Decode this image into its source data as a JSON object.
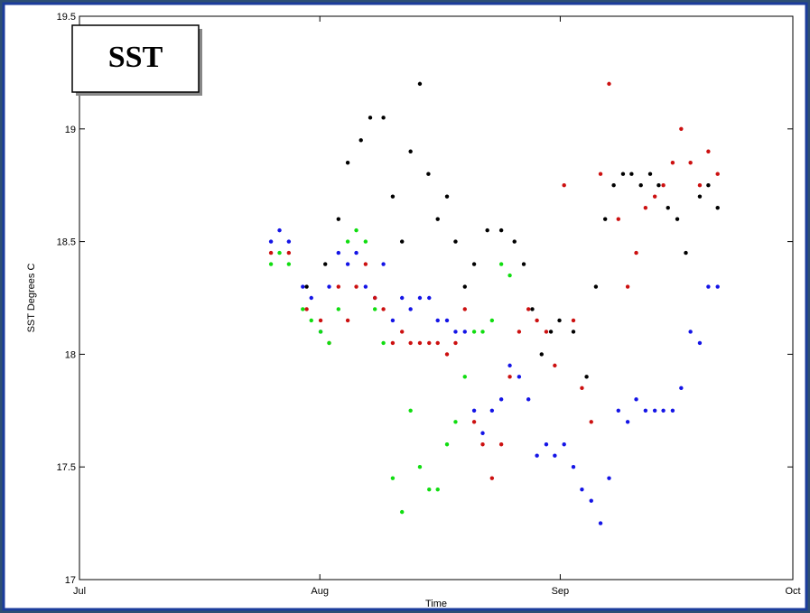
{
  "chart_data": {
    "type": "scatter",
    "title": "SST",
    "x_label": "Time",
    "y_label": "SST Degrees C",
    "xlim": [
      0,
      92
    ],
    "xticks": [
      {
        "value": 0,
        "label": "Jul"
      },
      {
        "value": 31,
        "label": "Aug"
      },
      {
        "value": 62,
        "label": "Sep"
      },
      {
        "value": 92,
        "label": "Oct"
      }
    ],
    "ylim": [
      17,
      19.5
    ],
    "yticks": [
      17,
      17.5,
      18,
      18.5,
      19,
      19.5
    ],
    "grid": false,
    "series": [
      {
        "color": "#000000",
        "x": [
          29.3,
          31.7,
          33.4,
          34.6,
          36.3,
          37.5,
          39.2,
          40.4,
          41.6,
          42.7,
          43.9,
          45.0,
          46.2,
          47.4,
          48.5,
          49.7,
          50.9,
          52.6,
          54.4,
          56.1,
          57.3,
          58.4,
          59.6,
          60.8,
          61.9,
          63.7,
          65.4,
          66.6,
          67.8,
          68.9,
          70.1,
          71.2,
          72.4,
          73.6,
          74.7,
          75.9,
          77.1,
          78.2,
          80.0,
          81.1,
          82.3
        ],
        "values": [
          18.3,
          18.4,
          18.6,
          18.85,
          18.95,
          19.05,
          19.05,
          18.7,
          18.5,
          18.9,
          19.2,
          18.8,
          18.6,
          18.7,
          18.5,
          18.3,
          18.4,
          18.55,
          18.55,
          18.5,
          18.4,
          18.2,
          18.0,
          18.1,
          18.15,
          18.1,
          17.9,
          18.3,
          18.6,
          18.75,
          18.8,
          18.8,
          18.75,
          18.8,
          18.75,
          18.65,
          18.6,
          18.45,
          18.7,
          18.75,
          18.65
        ]
      },
      {
        "color": "#1414e6",
        "x": [
          24.7,
          25.8,
          27.0,
          28.8,
          29.9,
          31.1,
          32.2,
          33.4,
          34.6,
          35.7,
          36.9,
          38.1,
          39.2,
          40.4,
          41.6,
          42.7,
          43.9,
          45.1,
          46.2,
          47.4,
          48.5,
          49.7,
          50.9,
          52.0,
          53.2,
          54.4,
          55.5,
          56.7,
          57.9,
          59.0,
          60.2,
          61.3,
          62.5,
          63.7,
          64.8,
          66.0,
          67.2,
          68.3,
          69.5,
          70.7,
          71.8,
          73.0,
          74.2,
          75.3,
          76.5,
          77.6,
          78.8,
          80.0,
          81.1,
          82.3
        ],
        "values": [
          18.5,
          18.55,
          18.5,
          18.3,
          18.25,
          18.1,
          18.3,
          18.45,
          18.4,
          18.45,
          18.3,
          18.25,
          18.4,
          18.15,
          18.25,
          18.2,
          18.25,
          18.25,
          18.15,
          18.15,
          18.1,
          18.1,
          17.75,
          17.65,
          17.75,
          17.8,
          17.95,
          17.9,
          17.8,
          17.55,
          17.6,
          17.55,
          17.6,
          17.5,
          17.4,
          17.35,
          17.25,
          17.45,
          17.75,
          17.7,
          17.8,
          17.75,
          17.75,
          17.75,
          17.75,
          17.85,
          18.1,
          18.05,
          18.3,
          18.3
        ]
      },
      {
        "color": "#cc1010",
        "x": [
          24.7,
          27.0,
          29.3,
          31.1,
          32.2,
          33.4,
          34.6,
          35.7,
          36.9,
          38.1,
          39.2,
          40.4,
          41.6,
          42.7,
          43.9,
          45.1,
          46.2,
          47.4,
          48.5,
          49.7,
          50.9,
          52.0,
          53.2,
          54.4,
          55.5,
          56.7,
          57.9,
          59.0,
          60.2,
          61.3,
          62.5,
          63.7,
          64.8,
          66.0,
          67.2,
          68.3,
          69.5,
          70.7,
          71.8,
          73.0,
          74.2,
          75.3,
          76.5,
          77.6,
          78.8,
          80.0,
          81.1,
          82.3
        ],
        "values": [
          18.45,
          18.45,
          18.2,
          18.15,
          18.05,
          18.3,
          18.15,
          18.3,
          18.4,
          18.25,
          18.2,
          18.05,
          18.1,
          18.05,
          18.05,
          18.05,
          18.05,
          18.0,
          18.05,
          18.2,
          17.7,
          17.6,
          17.45,
          17.6,
          17.9,
          18.1,
          18.2,
          18.15,
          18.1,
          17.95,
          18.75,
          18.15,
          17.85,
          17.7,
          18.8,
          19.2,
          18.6,
          18.3,
          18.45,
          18.65,
          18.7,
          18.75,
          18.85,
          19.0,
          18.85,
          18.75,
          18.9,
          18.8
        ]
      },
      {
        "color": "#10dd10",
        "x": [
          24.7,
          25.8,
          27.0,
          28.8,
          29.9,
          31.1,
          32.2,
          33.4,
          34.6,
          35.7,
          36.9,
          38.1,
          39.2,
          40.4,
          41.6,
          42.7,
          43.9,
          45.1,
          46.2,
          47.4,
          48.5,
          49.7,
          50.9,
          52.0,
          53.2,
          54.4,
          55.5
        ],
        "values": [
          18.4,
          18.45,
          18.4,
          18.2,
          18.15,
          18.1,
          18.05,
          18.2,
          18.5,
          18.55,
          18.5,
          18.2,
          18.05,
          17.45,
          17.3,
          17.75,
          17.5,
          17.4,
          17.4,
          17.6,
          17.7,
          17.9,
          18.1,
          18.1,
          18.15,
          18.4,
          18.35
        ]
      }
    ]
  }
}
